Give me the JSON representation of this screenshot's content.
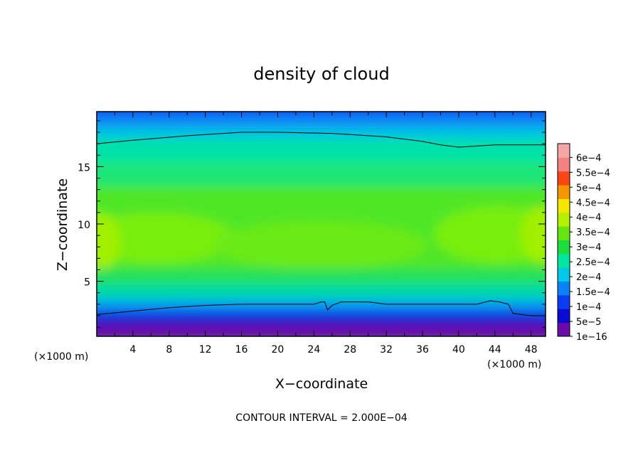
{
  "chart_data": {
    "type": "heatmap",
    "title": "density of cloud",
    "xlabel": "X−coordinate",
    "ylabel": "Z−coordinate",
    "x_unit_left": "(×1000 m)",
    "x_unit_right": "(×1000 m)",
    "xlim": [
      0,
      49.6
    ],
    "ylim": [
      0.2,
      19.8
    ],
    "x_ticks": [
      4,
      8,
      12,
      16,
      20,
      24,
      28,
      32,
      36,
      40,
      44,
      48
    ],
    "y_ticks": [
      5,
      10,
      15
    ],
    "colorbar": {
      "labels": [
        "1e−16",
        "5e−5",
        "1e−4",
        "1.5e−4",
        "2e−4",
        "2.5e−4",
        "3e−4",
        "3.5e−4",
        "4e−4",
        "4.5e−4",
        "5e−4",
        "5.5e−4",
        "6e−4"
      ],
      "levels": [
        1e-16,
        5e-05,
        0.0001,
        0.00015,
        0.0002,
        0.00025,
        0.0003,
        0.00035,
        0.0004,
        0.00045,
        0.0005,
        0.00055,
        0.0006
      ],
      "colors": [
        "#6a0aa8",
        "#0a0ad2",
        "#0a3cf0",
        "#0a82f5",
        "#00c8e6",
        "#00e6a0",
        "#1edc3c",
        "#64e614",
        "#b4f000",
        "#f5e600",
        "#f59600",
        "#fa4614",
        "#f58282",
        "#f5a5a5"
      ]
    },
    "contour_level": 0.0002,
    "contour_interval_text": "CONTOUR INTERVAL = 2.000E−04",
    "contours": [
      {
        "name": "upper",
        "x": [
          0,
          4,
          10,
          16,
          20,
          26,
          32,
          36,
          38,
          40,
          42,
          44,
          48,
          49.6
        ],
        "z": [
          17.0,
          17.3,
          17.7,
          18.0,
          18.0,
          17.9,
          17.6,
          17.2,
          16.9,
          16.7,
          16.8,
          16.9,
          16.9,
          16.9
        ]
      },
      {
        "name": "lower",
        "x": [
          0,
          4,
          8,
          12,
          16,
          20,
          22,
          24,
          24.8,
          25.2,
          25.5,
          26,
          27,
          28,
          30,
          32,
          36,
          40,
          42,
          43.5,
          44.5,
          45.5,
          46,
          48,
          49.6
        ],
        "z": [
          2.1,
          2.4,
          2.7,
          2.9,
          3.0,
          3.0,
          3.0,
          3.0,
          3.2,
          3.2,
          2.5,
          2.9,
          3.2,
          3.2,
          3.2,
          3.0,
          3.0,
          3.0,
          3.0,
          3.3,
          3.2,
          3.0,
          2.2,
          2.0,
          2.0
        ]
      }
    ]
  }
}
